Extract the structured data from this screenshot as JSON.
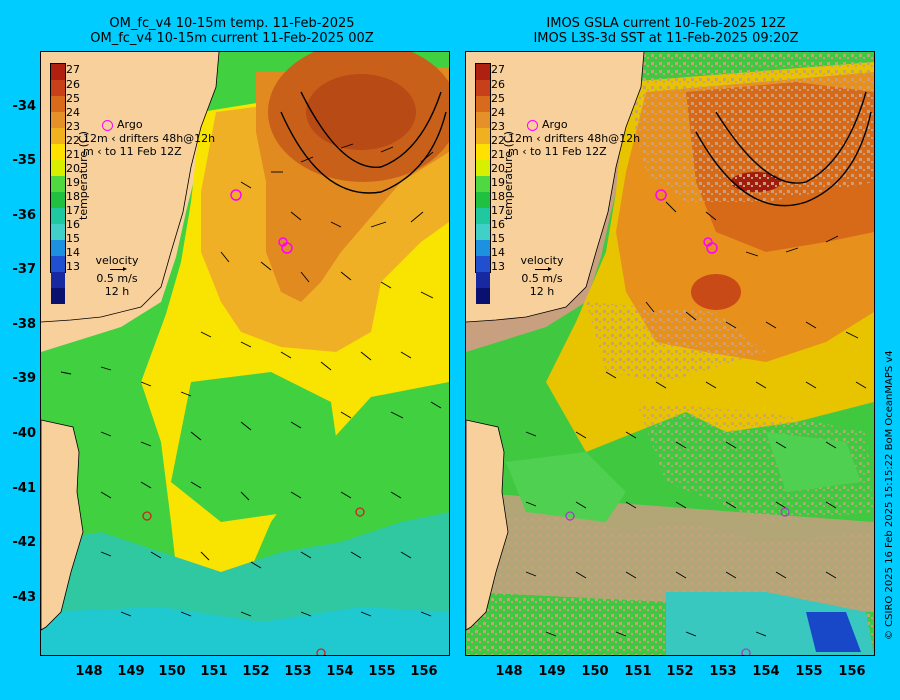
{
  "left": {
    "title_line1": "OM_fc_v4  10-15m temp. 11-Feb-2025",
    "title_line2": "OM_fc_v4  10-15m current 11-Feb-2025 00Z"
  },
  "right": {
    "title_line1": "IMOS GSLA current 10-Feb-2025 12Z",
    "title_line2": "IMOS L3S-3d SST at 11-Feb-2025 09:20Z"
  },
  "colorbar": {
    "labels": [
      "27",
      "26",
      "25",
      "24",
      "23",
      "22",
      "21",
      "20",
      "19",
      "18",
      "17",
      "16",
      "15",
      "14",
      "13"
    ],
    "colors": [
      "#b02010",
      "#c8401a",
      "#d96a1c",
      "#e59028",
      "#f0b020",
      "#ffe000",
      "#d8f000",
      "#50d840",
      "#20c040",
      "#20c8a0",
      "#40d0c8",
      "#1e90e0",
      "#2050d0",
      "#1828a0",
      "#0a1070"
    ],
    "title": "temperature (C)"
  },
  "legend": {
    "argo": "Argo",
    "drifters": "drifters 48h@12h",
    "to": "to 11 Feb 12Z",
    "twelve_m": "12m",
    "m": "m"
  },
  "velocity": {
    "label": "velocity",
    "speed": "0.5 m/s",
    "duration": "12 h"
  },
  "axes": {
    "lat_labels": [
      "-34",
      "-35",
      "-36",
      "-37",
      "-38",
      "-39",
      "-40",
      "-41",
      "-42",
      "-43"
    ],
    "lon_labels": [
      "148",
      "149",
      "150",
      "151",
      "152",
      "153",
      "154",
      "155",
      "156"
    ]
  },
  "credit": "© CSIRO 2025   16 Feb 2025 15:15:22 BoM OceanMAPS v4"
}
